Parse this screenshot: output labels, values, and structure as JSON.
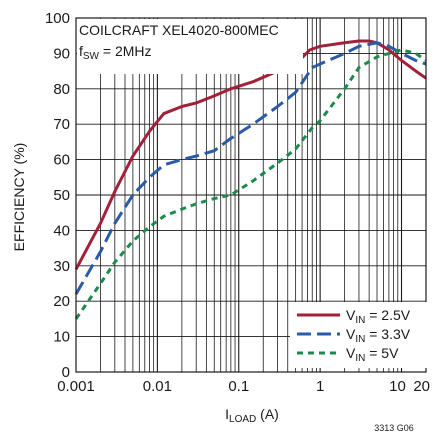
{
  "chart_data": {
    "type": "line",
    "x_scale": "log",
    "xlim": [
      0.001,
      20
    ],
    "ylim": [
      0,
      100
    ],
    "x_ticks": [
      0.001,
      0.01,
      0.1,
      1,
      10,
      20
    ],
    "x_tick_labels": [
      "0.001",
      "0.01",
      "0.1",
      "1",
      "10",
      "20"
    ],
    "y_ticks": [
      0,
      10,
      20,
      30,
      40,
      50,
      60,
      70,
      80,
      90,
      100
    ],
    "y_tick_labels": [
      "0",
      "10",
      "20",
      "30",
      "40",
      "50",
      "60",
      "70",
      "80",
      "90",
      "100"
    ],
    "xlabel_main": "I",
    "xlabel_sub": "LOAD",
    "xlabel_unit": " (A)",
    "ylabel": "EFFICIENCY (%)",
    "annotation_line1": "COILCRAFT XEL4020-800MEC",
    "annotation_line2_main": "f",
    "annotation_line2_sub": "SW",
    "annotation_line2_rest": " = 2MHz",
    "figure_code": "3313 G06",
    "grid": true,
    "legend_position": "bottom-right",
    "series": [
      {
        "name_main": "V",
        "name_sub": "IN",
        "name_rest": " = 2.5V",
        "color": "#a3203a",
        "dash": "solid",
        "points": [
          [
            0.001,
            29
          ],
          [
            0.002,
            42
          ],
          [
            0.003,
            51
          ],
          [
            0.005,
            61
          ],
          [
            0.008,
            68
          ],
          [
            0.012,
            73
          ],
          [
            0.02,
            75
          ],
          [
            0.03,
            76
          ],
          [
            0.05,
            78
          ],
          [
            0.08,
            80
          ],
          [
            0.15,
            82
          ],
          [
            0.3,
            85
          ],
          [
            0.5,
            87
          ],
          [
            0.75,
            91
          ],
          [
            1,
            92
          ],
          [
            2,
            93
          ],
          [
            3,
            93.5
          ],
          [
            4,
            93.5
          ],
          [
            5,
            93
          ],
          [
            7,
            91
          ],
          [
            10,
            88
          ],
          [
            15,
            85
          ],
          [
            20,
            83
          ]
        ]
      },
      {
        "name_main": "V",
        "name_sub": "IN",
        "name_rest": " = 3.3V",
        "color": "#2a5ba8",
        "dash": "long-dash",
        "points": [
          [
            0.001,
            22
          ],
          [
            0.002,
            34
          ],
          [
            0.003,
            42
          ],
          [
            0.005,
            50
          ],
          [
            0.008,
            55
          ],
          [
            0.012,
            58.5
          ],
          [
            0.02,
            60
          ],
          [
            0.03,
            61
          ],
          [
            0.05,
            62.5
          ],
          [
            0.08,
            66
          ],
          [
            0.15,
            70
          ],
          [
            0.3,
            75
          ],
          [
            0.5,
            79
          ],
          [
            0.8,
            86
          ],
          [
            1,
            87
          ],
          [
            2,
            90
          ],
          [
            3,
            92
          ],
          [
            5,
            93
          ],
          [
            7,
            92
          ],
          [
            10,
            90
          ],
          [
            15,
            88
          ],
          [
            20,
            87
          ]
        ]
      },
      {
        "name_main": "V",
        "name_sub": "IN",
        "name_rest": " = 5V",
        "color": "#1b8a4a",
        "dash": "short-dash",
        "points": [
          [
            0.001,
            15
          ],
          [
            0.002,
            25
          ],
          [
            0.003,
            31
          ],
          [
            0.005,
            37
          ],
          [
            0.008,
            41
          ],
          [
            0.012,
            44
          ],
          [
            0.02,
            46
          ],
          [
            0.03,
            47.5
          ],
          [
            0.05,
            49
          ],
          [
            0.08,
            50
          ],
          [
            0.15,
            54
          ],
          [
            0.3,
            59
          ],
          [
            0.5,
            63
          ],
          [
            0.8,
            69
          ],
          [
            1,
            71
          ],
          [
            2,
            80
          ],
          [
            3,
            86
          ],
          [
            5,
            89
          ],
          [
            7,
            90
          ],
          [
            10,
            91
          ],
          [
            15,
            90
          ],
          [
            20,
            88
          ]
        ]
      }
    ]
  }
}
